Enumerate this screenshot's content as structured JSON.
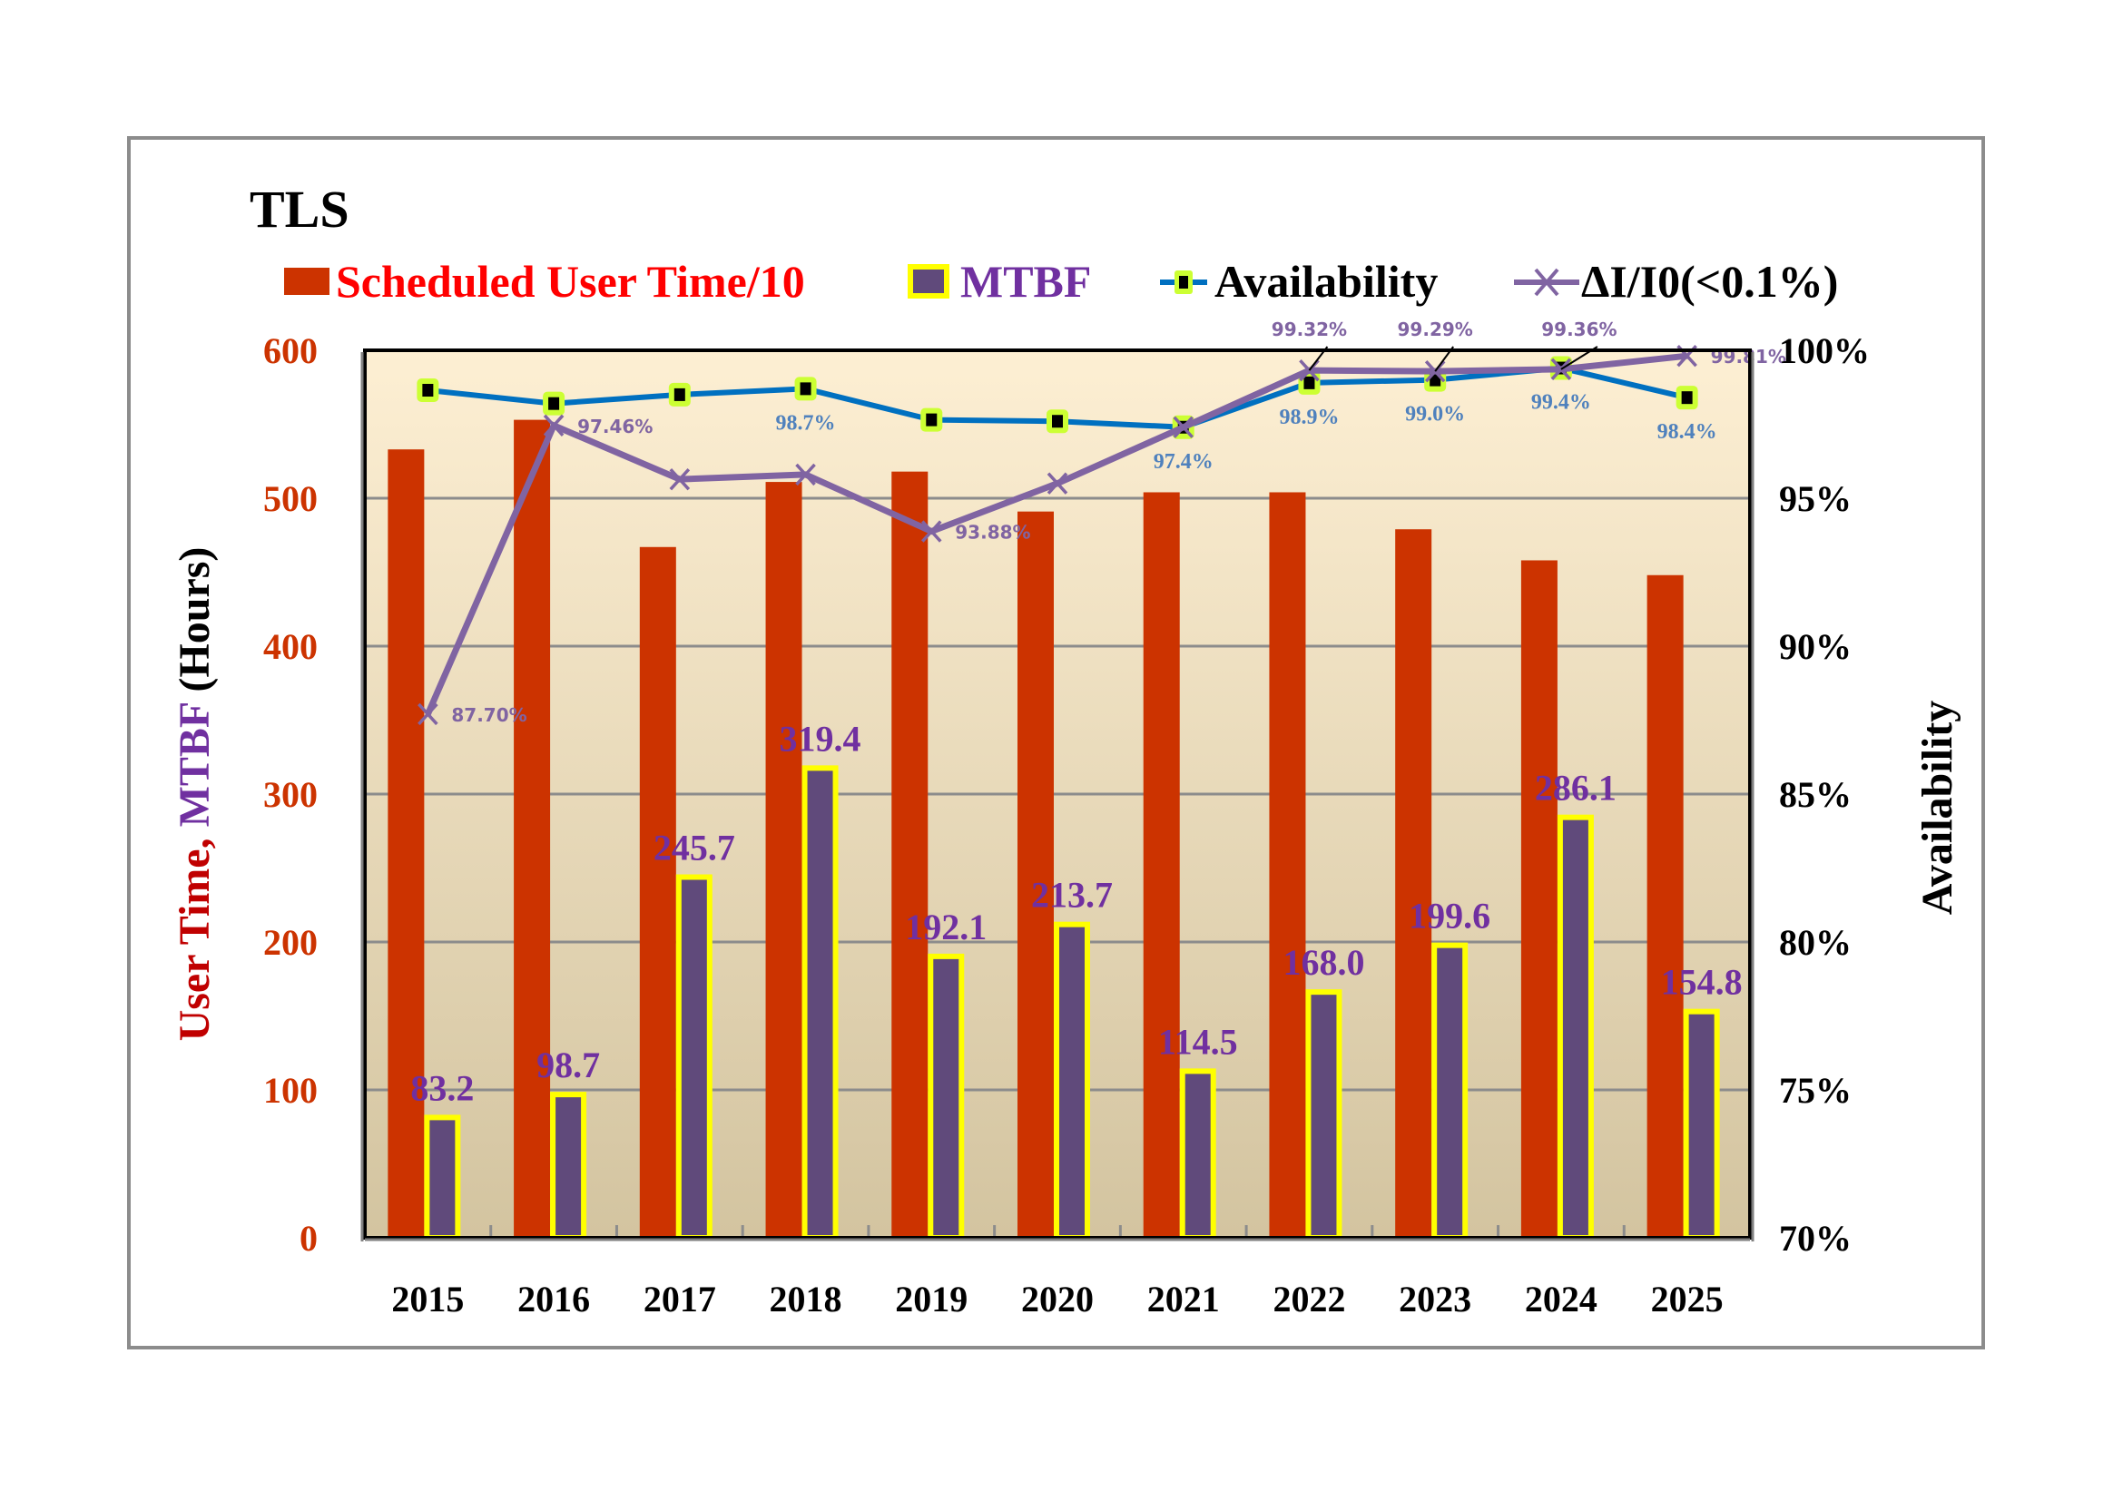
{
  "chart_data": {
    "type": "bar",
    "title": "TLS",
    "categories": [
      "2015",
      "2016",
      "2017",
      "2018",
      "2019",
      "2020",
      "2021",
      "2022",
      "2023",
      "2024",
      "2025"
    ],
    "series": [
      {
        "name": "Scheduled User Time/10",
        "type": "bar",
        "axis": "left",
        "color": "#cc3300",
        "values": [
          533,
          553,
          467,
          511,
          518,
          491,
          504,
          504,
          479,
          458,
          448
        ]
      },
      {
        "name": "MTBF",
        "type": "bar",
        "axis": "left",
        "color": "#604a7b",
        "border_color": "#ffff00",
        "label_color": "#7030a0",
        "values": [
          83.2,
          98.7,
          245.7,
          319.4,
          192.1,
          213.7,
          114.5,
          168.0,
          199.6,
          286.1,
          154.8
        ],
        "labels": [
          "83.2",
          "98.7",
          "245.7",
          "319.4",
          "192.1",
          "213.7",
          "114.5",
          "168.0",
          "199.6",
          "286.1",
          "154.8"
        ]
      },
      {
        "name": "Availability",
        "type": "line",
        "axis": "right",
        "color": "#0070c0",
        "marker_color": "#ccff33",
        "label_color": "#4f81bd",
        "values": [
          98.65,
          98.2,
          98.5,
          98.7,
          97.65,
          97.6,
          97.4,
          98.9,
          99.0,
          99.4,
          98.4
        ],
        "labels": [
          "",
          "",
          "",
          "98.7%",
          "",
          "",
          "97.4%",
          "98.9%",
          "99.0%",
          "99.4%",
          "98.4%"
        ]
      },
      {
        "name": "ΔI/I0(<0.1%)",
        "type": "line",
        "axis": "right",
        "color": "#8064a2",
        "values": [
          87.7,
          97.46,
          95.64,
          95.8,
          93.88,
          95.5,
          97.4,
          99.32,
          99.29,
          99.36,
          99.81
        ],
        "labels": [
          "87.70%",
          "97.46%",
          "",
          "",
          "93.88%",
          "",
          "",
          "99.32%",
          "99.29%",
          "99.36%",
          "99.81%"
        ]
      }
    ],
    "y_left": {
      "label_parts": [
        "User Time, ",
        "MTBF",
        " (Hours)"
      ],
      "label_colors": [
        "#c00000",
        "#7030a0",
        "#000000"
      ],
      "range": [
        0,
        600
      ],
      "ticks": [
        "0",
        "100",
        "200",
        "300",
        "400",
        "500",
        "600"
      ]
    },
    "y_right": {
      "label": "Availability",
      "range": [
        70,
        100
      ],
      "ticks": [
        "70%",
        "75%",
        "80%",
        "85%",
        "90%",
        "95%",
        "100%"
      ]
    },
    "xlabel": "",
    "grid": true,
    "legend_position": "top",
    "colors": {
      "plot_bg_top": "#fdefd3",
      "plot_bg_bottom": "#d3c4a0",
      "legend_user_time_text": "#ff0000",
      "legend_mtbf_text": "#7030a0",
      "legend_availability_text": "#000000",
      "legend_di_text": "#000000"
    }
  }
}
